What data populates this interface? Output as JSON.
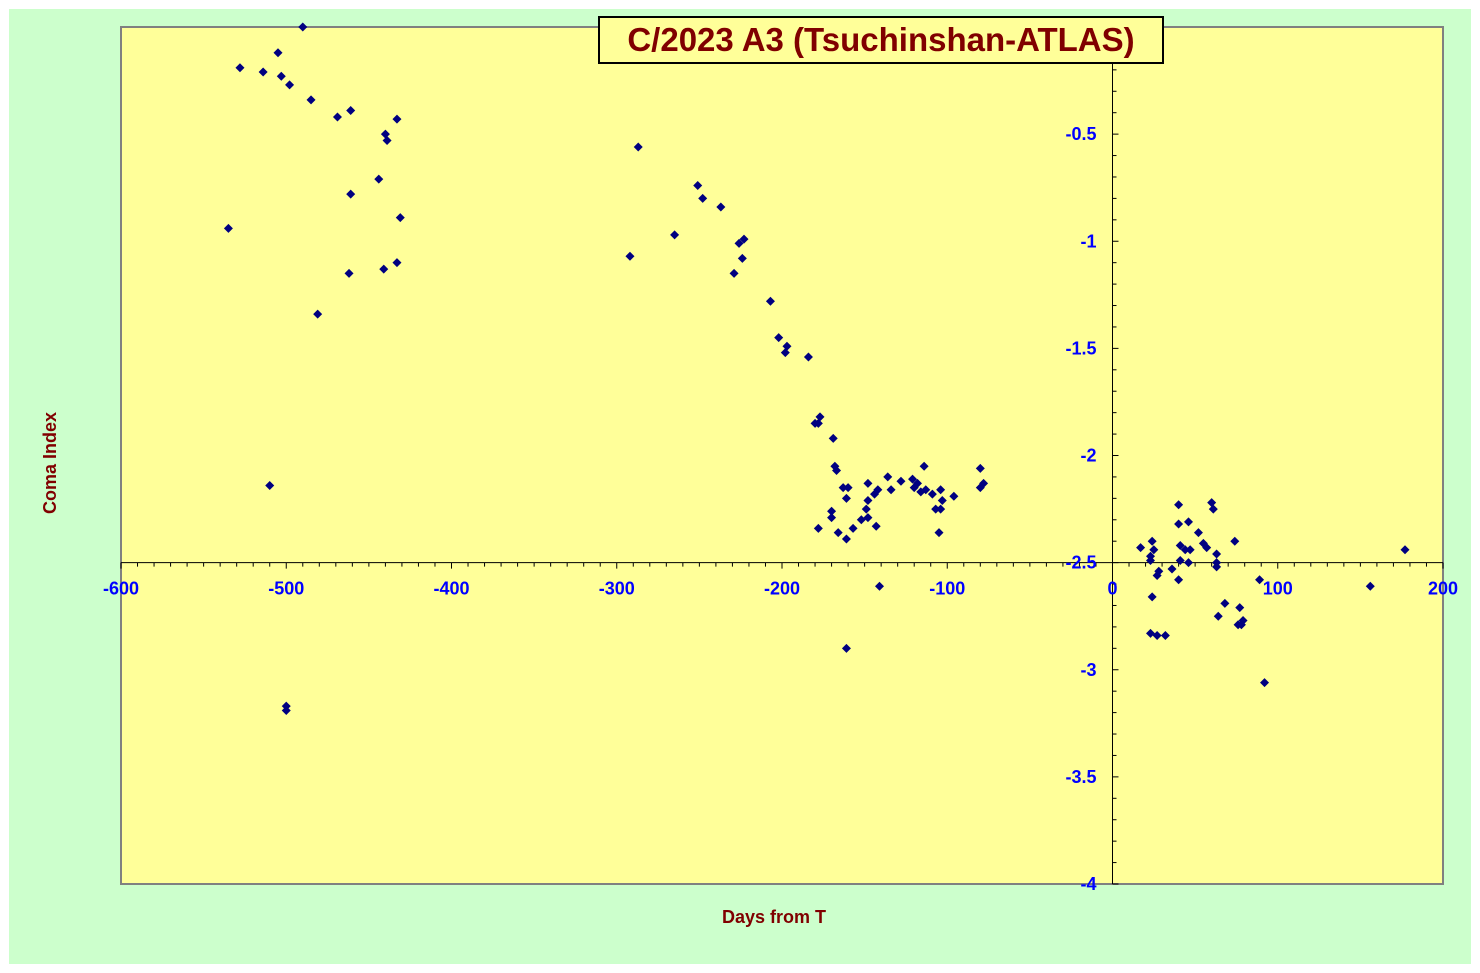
{
  "chart_data": {
    "type": "scatter",
    "title": "C/2023 A3 (Tsuchinshan-ATLAS)",
    "xlabel": "Days from T",
    "ylabel": "Coma Index",
    "xlim": [
      -600,
      200
    ],
    "ylim": [
      -4,
      0
    ],
    "x_ticks": [
      -600,
      -500,
      -400,
      -300,
      -200,
      -100,
      0,
      100,
      200
    ],
    "y_ticks": [
      0,
      -0.5,
      -1,
      -1.5,
      -2,
      -2.5,
      -3,
      -3.5,
      -4
    ],
    "x_tick_labels": [
      "-600",
      "-500",
      "-400",
      "-300",
      "-200",
      "-100",
      "0",
      "100",
      "200"
    ],
    "y_tick_labels": [
      "0",
      "-0.5",
      "-1",
      "-1.5",
      "-2",
      "-2.5",
      "-3",
      "-3.5",
      "-4"
    ],
    "grid": false,
    "legend": "none",
    "colors": {
      "plot_background": "#ffff99",
      "chart_background": "#ccffcc",
      "marker": "#000080",
      "tick_labels": "#0000ff",
      "axis_titles": "#800000"
    },
    "series": [
      {
        "marker": "diamond",
        "points": [
          [
            -490,
            0.0
          ],
          [
            -505,
            -0.12
          ],
          [
            -528,
            -0.19
          ],
          [
            -514,
            -0.21
          ],
          [
            -503,
            -0.23
          ],
          [
            -498,
            -0.27
          ],
          [
            -485,
            -0.34
          ],
          [
            -469,
            -0.42
          ],
          [
            -461,
            -0.39
          ],
          [
            -440,
            -0.5
          ],
          [
            -439,
            -0.53
          ],
          [
            -433,
            -0.43
          ],
          [
            -444,
            -0.71
          ],
          [
            -461,
            -0.78
          ],
          [
            -431,
            -0.89
          ],
          [
            -535,
            -0.94
          ],
          [
            -433,
            -1.1
          ],
          [
            -441,
            -1.13
          ],
          [
            -462,
            -1.15
          ],
          [
            -481,
            -1.34
          ],
          [
            -510,
            -2.14
          ],
          [
            -500,
            -3.17
          ],
          [
            -500,
            -3.19
          ],
          [
            -287,
            -0.56
          ],
          [
            -292,
            -1.07
          ],
          [
            -265,
            -0.97
          ],
          [
            -251,
            -0.74
          ],
          [
            -248,
            -0.8
          ],
          [
            -237,
            -0.84
          ],
          [
            -226,
            -1.01
          ],
          [
            -223,
            -0.99
          ],
          [
            -224,
            -1.08
          ],
          [
            -229,
            -1.15
          ],
          [
            -207,
            -1.28
          ],
          [
            -202,
            -1.45
          ],
          [
            -197,
            -1.49
          ],
          [
            -198,
            -1.52
          ],
          [
            -184,
            -1.54
          ],
          [
            -177,
            -1.82
          ],
          [
            -178,
            -1.85
          ],
          [
            -180,
            -1.85
          ],
          [
            -169,
            -1.92
          ],
          [
            -168,
            -2.05
          ],
          [
            -167,
            -2.07
          ],
          [
            -163,
            -2.15
          ],
          [
            -160,
            -2.15
          ],
          [
            -161,
            -2.2
          ],
          [
            -170,
            -2.26
          ],
          [
            -170,
            -2.29
          ],
          [
            -178,
            -2.34
          ],
          [
            -166,
            -2.36
          ],
          [
            -157,
            -2.34
          ],
          [
            -161,
            -2.39
          ],
          [
            -148,
            -2.13
          ],
          [
            -148,
            -2.21
          ],
          [
            -149,
            -2.25
          ],
          [
            -144,
            -2.18
          ],
          [
            -142,
            -2.16
          ],
          [
            -136,
            -2.1
          ],
          [
            -134,
            -2.16
          ],
          [
            -143,
            -2.33
          ],
          [
            -148,
            -2.29
          ],
          [
            -152,
            -2.3
          ],
          [
            -128,
            -2.12
          ],
          [
            -121,
            -2.11
          ],
          [
            -118,
            -2.13
          ],
          [
            -120,
            -2.15
          ],
          [
            -116,
            -2.17
          ],
          [
            -114,
            -2.05
          ],
          [
            -113,
            -2.16
          ],
          [
            -109,
            -2.18
          ],
          [
            -104,
            -2.16
          ],
          [
            -103,
            -2.21
          ],
          [
            -107,
            -2.25
          ],
          [
            -104,
            -2.25
          ],
          [
            -105,
            -2.36
          ],
          [
            -96,
            -2.19
          ],
          [
            -80,
            -2.06
          ],
          [
            -78,
            -2.13
          ],
          [
            -80,
            -2.15
          ],
          [
            -141,
            -2.61
          ],
          [
            -161,
            -2.9
          ],
          [
            17,
            -2.43
          ],
          [
            24,
            -2.4
          ],
          [
            25,
            -2.44
          ],
          [
            23,
            -2.47
          ],
          [
            23,
            -2.49
          ],
          [
            28,
            -2.54
          ],
          [
            27,
            -2.56
          ],
          [
            24,
            -2.66
          ],
          [
            23,
            -2.83
          ],
          [
            27,
            -2.84
          ],
          [
            32,
            -2.84
          ],
          [
            40,
            -2.23
          ],
          [
            40,
            -2.32
          ],
          [
            41,
            -2.42
          ],
          [
            46,
            -2.31
          ],
          [
            47,
            -2.44
          ],
          [
            44,
            -2.44
          ],
          [
            41,
            -2.49
          ],
          [
            46,
            -2.5
          ],
          [
            36,
            -2.53
          ],
          [
            40,
            -2.58
          ],
          [
            52,
            -2.36
          ],
          [
            55,
            -2.41
          ],
          [
            57,
            -2.43
          ],
          [
            60,
            -2.22
          ],
          [
            61,
            -2.25
          ],
          [
            63,
            -2.46
          ],
          [
            63,
            -2.5
          ],
          [
            63,
            -2.52
          ],
          [
            64,
            -2.75
          ],
          [
            68,
            -2.69
          ],
          [
            74,
            -2.4
          ],
          [
            77,
            -2.71
          ],
          [
            79,
            -2.77
          ],
          [
            76,
            -2.79
          ],
          [
            78,
            -2.79
          ],
          [
            89,
            -2.58
          ],
          [
            92,
            -3.06
          ],
          [
            156,
            -2.61
          ],
          [
            177,
            -2.44
          ]
        ]
      }
    ]
  }
}
